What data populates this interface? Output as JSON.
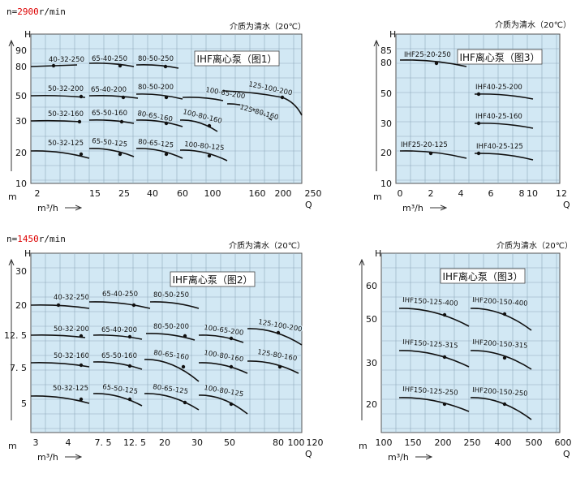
{
  "panels": [
    {
      "speed": {
        "prefix": "n=",
        "value": "2900",
        "unit": "r/min"
      },
      "note": "介质为清水（20℃）",
      "title": "IHF离心泵（图1）",
      "y_axis": {
        "name": "H",
        "unit": "m",
        "ticks": [
          "90",
          "80",
          "50",
          "30",
          "20",
          "10"
        ]
      },
      "x_axis": {
        "name": "Q",
        "unit": "m³/h",
        "ticks": [
          "2",
          "15",
          "25",
          "40",
          "60",
          "100",
          "160",
          "200",
          "250"
        ]
      },
      "curves": [
        "40-32-250",
        "65-40-250",
        "80-50-250",
        "50-32-200",
        "65-40-200",
        "80-50-200",
        "100-65-200",
        "125-100-200",
        "50-32-160",
        "65-50-160",
        "80-65-160",
        "100-80-160",
        "125-80-160",
        "50-32-125",
        "65-50-125",
        "80-65-125",
        "100-80-125"
      ]
    },
    {
      "note": "介质为清水（20℃）",
      "title": "IHF离心泵（图3）",
      "y_axis": {
        "name": "H",
        "unit": "m",
        "ticks": [
          "85",
          "80",
          "50",
          "30",
          "20",
          "10"
        ]
      },
      "x_axis": {
        "name": "Q",
        "unit": "m³/h",
        "ticks": [
          "0",
          "2",
          "4",
          "6",
          "8",
          "10",
          "12"
        ]
      },
      "curves": [
        "IHF25-20-250",
        "IHF40-25-200",
        "IHF40-25-160",
        "IHF25-20-125",
        "IHF40-25-125"
      ]
    },
    {
      "speed": {
        "prefix": "n=",
        "value": "1450",
        "unit": "r/min"
      },
      "note": "介质为清水（20℃）",
      "title": "IHF离心泵（图2）",
      "y_axis": {
        "name": "H",
        "unit": "m",
        "ticks": [
          "30",
          "20",
          "12. 5",
          "7. 5",
          "5"
        ]
      },
      "x_axis": {
        "name": "Q",
        "unit": "m³/h",
        "ticks": [
          "3",
          "4",
          "7. 5",
          "12. 5",
          "20",
          "30",
          "50",
          "80",
          "100",
          "120"
        ]
      },
      "curves": [
        "40-32-250",
        "65-40-250",
        "80-50-250",
        "50-32-200",
        "65-40-200",
        "80-50-200",
        "100-65-200",
        "125-100-200",
        "50-32-160",
        "65-50-160",
        "80-65-160",
        "100-80-160",
        "125-80-160",
        "50-32-125",
        "65-50-125",
        "80-65-125",
        "100-80-125"
      ]
    },
    {
      "note": "介质为清水（20℃）",
      "title": "IHF离心泵（图3）",
      "y_axis": {
        "name": "H",
        "unit": "m",
        "ticks": [
          "60",
          "50",
          "30",
          "20"
        ]
      },
      "x_axis": {
        "name": "Q",
        "unit": "m³/h",
        "ticks": [
          "100",
          "150",
          "200",
          "250",
          "400",
          "500",
          "600"
        ]
      },
      "curves": [
        "IHF150-125-400",
        "IHF200-150-400",
        "IHF150-125-315",
        "IHF200-150-315",
        "IHF150-125-250",
        "IHF200-150-250"
      ]
    }
  ]
}
